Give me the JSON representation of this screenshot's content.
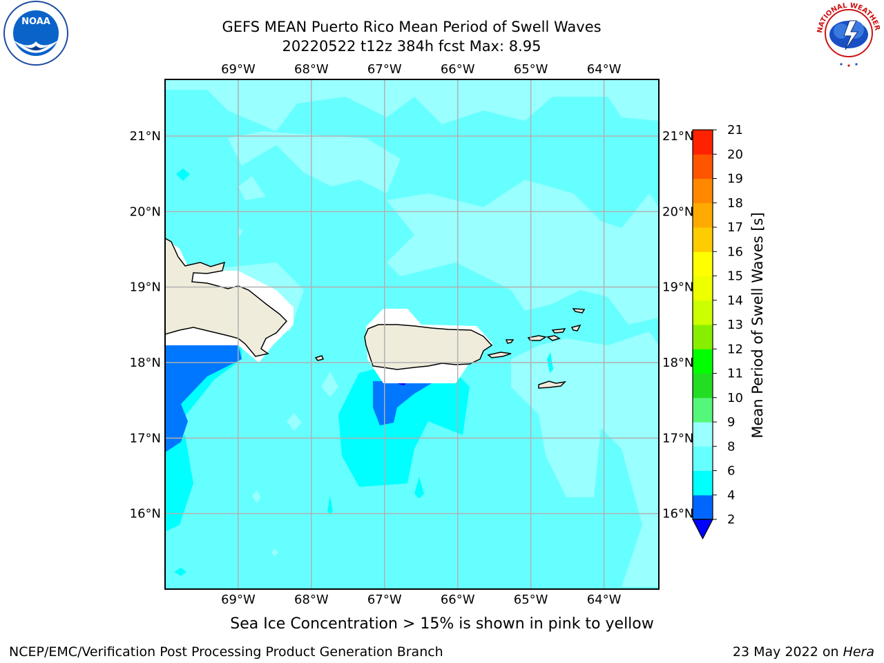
{
  "header": {
    "title_line1": "GEFS MEAN Puerto Rico Mean Period of Swell Waves",
    "title_line2": "20220522 t12z 384h fcst   Max: 8.95"
  },
  "map": {
    "lon_labels": [
      "69°W",
      "68°W",
      "67°W",
      "66°W",
      "65°W",
      "64°W"
    ],
    "lon_values": [
      -69,
      -68,
      -67,
      -66,
      -65,
      -64
    ],
    "lat_labels": [
      "21°N",
      "20°N",
      "19°N",
      "18°N",
      "17°N",
      "16°N"
    ],
    "lat_values": [
      21,
      20,
      19,
      18,
      17,
      16
    ],
    "extent": {
      "lon": [
        -70,
        -63.25
      ],
      "lat": [
        15,
        21.75
      ]
    }
  },
  "colorbar": {
    "label": "Mean Period of Swell Waves [s]",
    "levels": [
      "2",
      "4",
      "6",
      "8",
      "9",
      "10",
      "11",
      "12",
      "13",
      "14",
      "15",
      "16",
      "17",
      "18",
      "19",
      "20",
      "21"
    ],
    "colors": [
      "#0066ff",
      "#00ffff",
      "#66ffff",
      "#99ffff",
      "#55f77a",
      "#22dd22",
      "#00ff00",
      "#88ee00",
      "#ccff00",
      "#eeff00",
      "#ffff00",
      "#ffcc00",
      "#ffaa00",
      "#ff8800",
      "#ff5500",
      "#ff2200"
    ],
    "under_color": "#0000ff"
  },
  "colors": {
    "land": "#efecdc",
    "ocean_base": "#66ffff",
    "ocean_light": "#99ffff",
    "ocean_cyan": "#00ffff",
    "ocean_blue": "#0077ff",
    "grid": "#b0b0b0"
  },
  "logos": {
    "noaa_text": "NOAA",
    "nws_text": "NATIONAL WEATHER SERVICE"
  },
  "footer": {
    "note": "Sea Ice Concentration > 15% is shown in pink to yellow",
    "left": "NCEP/EMC/Verification Post Processing Product Generation Branch",
    "right_prefix": "23 May 2022 on ",
    "right_host": "Hera"
  }
}
